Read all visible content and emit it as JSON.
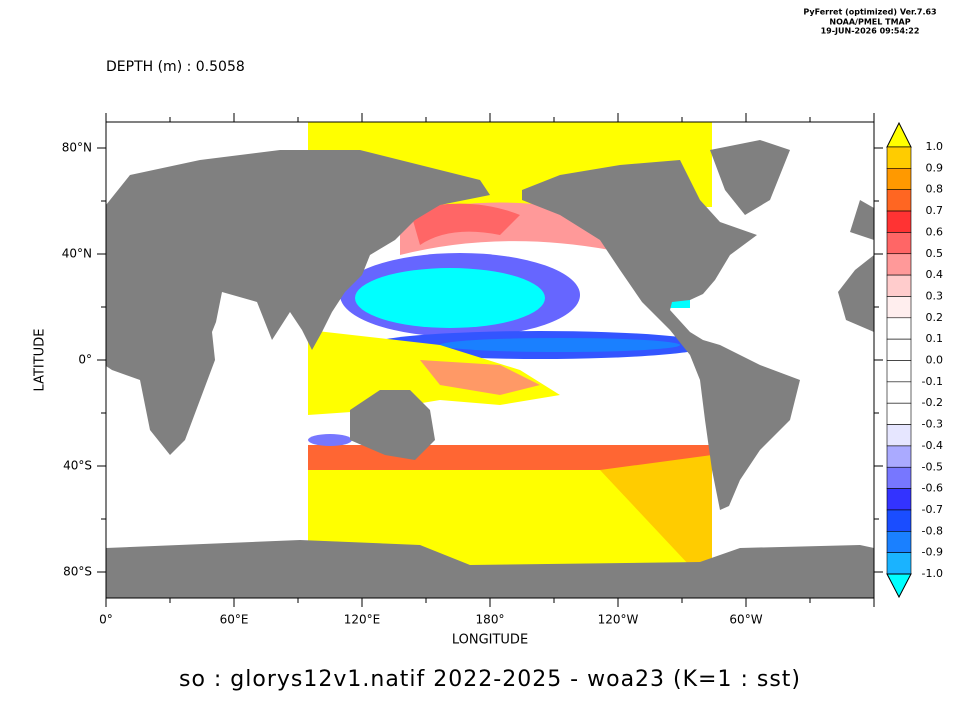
{
  "header": {
    "software": "PyFerret (optimized) Ver.7.63",
    "org": "NOAA/PMEL TMAP",
    "timestamp": "19-JUN-2026 09:54:22"
  },
  "depth_label": "DEPTH (m) : 0.5058",
  "map": {
    "x_ticks": [
      "0°",
      "60°E",
      "120°E",
      "180°",
      "120°W",
      "60°W"
    ],
    "y_ticks": [
      "80°N",
      "40°N",
      "0°",
      "40°S",
      "80°S"
    ],
    "x_label": "LONGITUDE",
    "y_label": "LATITUDE"
  },
  "colorbar": {
    "labels": [
      "1.0",
      "0.9",
      "0.8",
      "0.7",
      "0.6",
      "0.5",
      "0.4",
      "0.3",
      "0.2",
      "0.1",
      "0.0",
      "-0.1",
      "-0.2",
      "-0.3",
      "-0.4",
      "-0.5",
      "-0.6",
      "-0.7",
      "-0.8",
      "-0.9",
      "-1.0"
    ],
    "colors": [
      "#ffff00",
      "#ffcc00",
      "#ff9900",
      "#ff6622",
      "#ff3333",
      "#ff6666",
      "#ff9999",
      "#ffcccc",
      "#ffeeee",
      "#ffffff",
      "#ffffff",
      "#ffffff",
      "#ffffff",
      "#ffffff",
      "#e6e6ff",
      "#aaaaff",
      "#7777ff",
      "#3333ff",
      "#1a4dff",
      "#1a80ff",
      "#1ab3ff",
      "#00ffff"
    ]
  },
  "caption": "so : glorys12v1.natif 2022-2025    - woa23  (K=1 : sst)"
}
